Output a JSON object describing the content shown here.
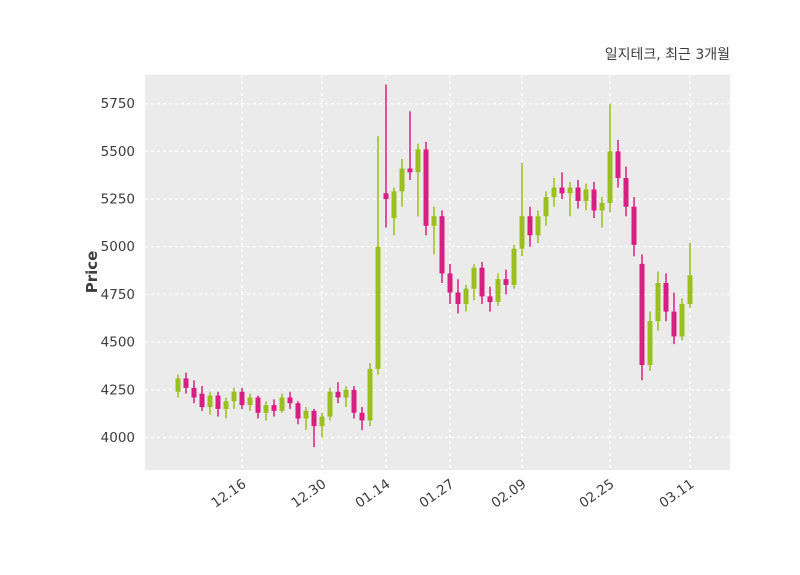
{
  "chart_data": {
    "type": "candlestick",
    "title": "일지테크, 최근 3개월",
    "ylabel": "Price",
    "xlabel": "",
    "ylim": [
      3830,
      5900
    ],
    "y_ticks": [
      4000,
      4250,
      4500,
      4750,
      5000,
      5250,
      5500,
      5750
    ],
    "x_ticks": [
      {
        "label": "12.16",
        "i": 8
      },
      {
        "label": "12.30",
        "i": 18
      },
      {
        "label": "01.14",
        "i": 26
      },
      {
        "label": "01.27",
        "i": 34
      },
      {
        "label": "02.09",
        "i": 43
      },
      {
        "label": "02.25",
        "i": 54
      },
      {
        "label": "03.11",
        "i": 64
      }
    ],
    "grid": {
      "on": true,
      "color": "#ffffff",
      "style": "dashed"
    },
    "plot_bg": "#ebebeb",
    "up_color": "#99c01d",
    "down_color": "#d81e82",
    "text_color": "#3d3d3d",
    "ohlc_format": [
      "open",
      "high",
      "low",
      "close"
    ],
    "candles": [
      [
        4240,
        4330,
        4210,
        4310
      ],
      [
        4310,
        4340,
        4230,
        4260
      ],
      [
        4260,
        4300,
        4180,
        4210
      ],
      [
        4230,
        4270,
        4140,
        4160
      ],
      [
        4160,
        4240,
        4120,
        4220
      ],
      [
        4220,
        4240,
        4110,
        4150
      ],
      [
        4150,
        4210,
        4100,
        4190
      ],
      [
        4190,
        4260,
        4150,
        4240
      ],
      [
        4240,
        4260,
        4150,
        4170
      ],
      [
        4170,
        4230,
        4140,
        4210
      ],
      [
        4210,
        4220,
        4100,
        4130
      ],
      [
        4130,
        4190,
        4090,
        4170
      ],
      [
        4170,
        4200,
        4110,
        4140
      ],
      [
        4140,
        4230,
        4130,
        4210
      ],
      [
        4210,
        4240,
        4150,
        4180
      ],
      [
        4180,
        4190,
        4070,
        4100
      ],
      [
        4100,
        4160,
        4040,
        4140
      ],
      [
        4140,
        4150,
        3950,
        4060
      ],
      [
        4060,
        4130,
        4000,
        4110
      ],
      [
        4110,
        4260,
        4090,
        4240
      ],
      [
        4240,
        4290,
        4180,
        4210
      ],
      [
        4210,
        4270,
        4160,
        4250
      ],
      [
        4250,
        4270,
        4100,
        4130
      ],
      [
        4130,
        4160,
        4040,
        4090
      ],
      [
        4090,
        4390,
        4060,
        4360
      ],
      [
        4360,
        5580,
        4330,
        5000
      ],
      [
        5280,
        5850,
        5100,
        5250
      ],
      [
        5150,
        5310,
        5060,
        5290
      ],
      [
        5290,
        5460,
        5210,
        5410
      ],
      [
        5410,
        5710,
        5350,
        5390
      ],
      [
        5390,
        5540,
        5160,
        5510
      ],
      [
        5510,
        5550,
        5060,
        5110
      ],
      [
        5110,
        5210,
        4960,
        5160
      ],
      [
        5160,
        5190,
        4810,
        4860
      ],
      [
        4860,
        4910,
        4700,
        4760
      ],
      [
        4760,
        4830,
        4650,
        4700
      ],
      [
        4700,
        4800,
        4660,
        4780
      ],
      [
        4780,
        4910,
        4720,
        4890
      ],
      [
        4890,
        4920,
        4700,
        4740
      ],
      [
        4740,
        4790,
        4660,
        4710
      ],
      [
        4710,
        4860,
        4690,
        4830
      ],
      [
        4830,
        4880,
        4750,
        4800
      ],
      [
        4800,
        5010,
        4780,
        4990
      ],
      [
        4990,
        5440,
        4950,
        5160
      ],
      [
        5160,
        5210,
        5000,
        5060
      ],
      [
        5060,
        5190,
        5020,
        5160
      ],
      [
        5160,
        5290,
        5110,
        5260
      ],
      [
        5260,
        5360,
        5210,
        5310
      ],
      [
        5310,
        5390,
        5250,
        5280
      ],
      [
        5280,
        5340,
        5160,
        5310
      ],
      [
        5310,
        5350,
        5200,
        5240
      ],
      [
        5240,
        5330,
        5190,
        5300
      ],
      [
        5300,
        5340,
        5150,
        5190
      ],
      [
        5190,
        5260,
        5100,
        5230
      ],
      [
        5230,
        5750,
        5180,
        5500
      ],
      [
        5500,
        5560,
        5310,
        5360
      ],
      [
        5360,
        5420,
        5160,
        5210
      ],
      [
        5210,
        5260,
        4950,
        5010
      ],
      [
        4910,
        4960,
        4300,
        4380
      ],
      [
        4380,
        4660,
        4350,
        4610
      ],
      [
        4610,
        4870,
        4560,
        4810
      ],
      [
        4810,
        4860,
        4610,
        4660
      ],
      [
        4660,
        4760,
        4490,
        4530
      ],
      [
        4530,
        4730,
        4510,
        4700
      ],
      [
        4700,
        5020,
        4680,
        4850
      ]
    ]
  }
}
